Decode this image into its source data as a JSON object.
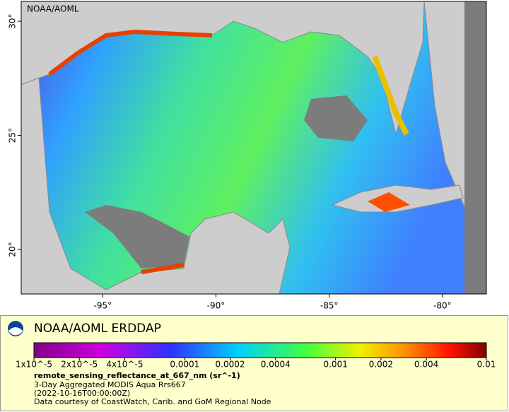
{
  "map": {
    "credit": "NOAA/AOML",
    "xlim": [
      -98.6,
      -78.06
    ],
    "ylim": [
      18.05,
      30.87
    ],
    "xticks": [
      {
        "value": -95,
        "label": "-95°"
      },
      {
        "value": -90,
        "label": "-90°"
      },
      {
        "value": -85,
        "label": "-85°"
      },
      {
        "value": -80,
        "label": "-80°"
      }
    ],
    "yticks": [
      {
        "value": 20,
        "label": "20°"
      },
      {
        "value": 25,
        "label": "25°"
      },
      {
        "value": 30,
        "label": "30°"
      }
    ]
  },
  "footer": {
    "logo_text": "NOAA/AOML ERDDAP",
    "colorbar": {
      "log": true,
      "lim": [
        1e-05,
        0.01
      ],
      "ticks": [
        {
          "value": 1e-05,
          "label": "1x10^-5"
        },
        {
          "value": 2e-05,
          "label": "2x10^-5"
        },
        {
          "value": 4e-05,
          "label": "4x10^-5"
        },
        0.0001,
        0.0002,
        0.0004,
        0.001,
        0.002,
        0.004,
        0.01
      ]
    },
    "variable": "remote_sensing_reflectance_at_667_nm (sr^-1)",
    "lines": [
      "3-Day Aggregated MODIS Aqua Rrs667",
      "(2022-10-16T00:00:00Z)",
      "Data courtesy of CoastWatch, Carib. and GoM Regional Node"
    ]
  }
}
